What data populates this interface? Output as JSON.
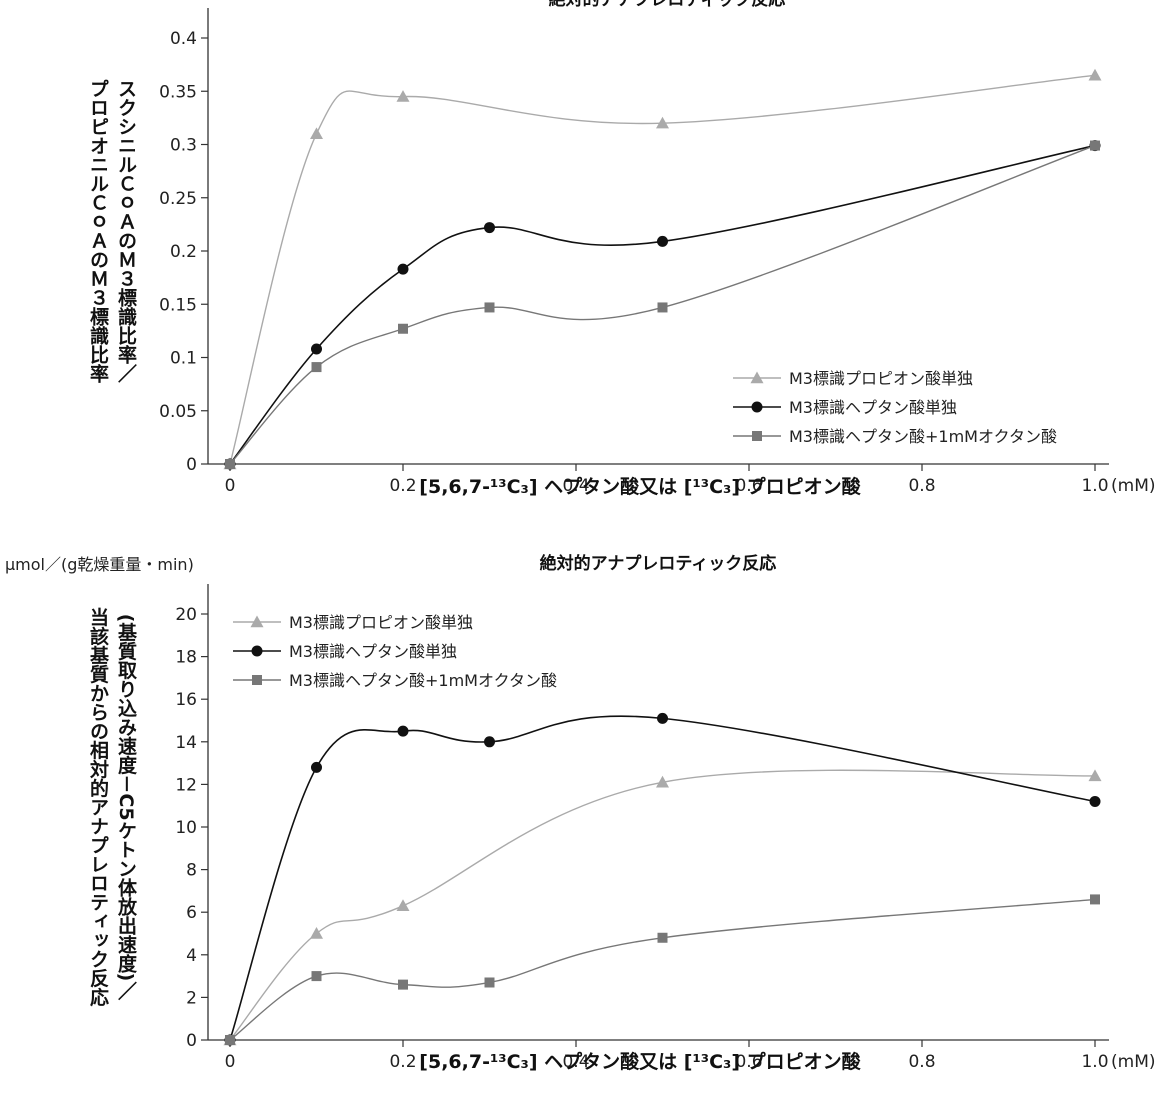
{
  "chart_data": [
    {
      "type": "line",
      "title": "絶対的アナプレロティック反応",
      "ylabel_lines": [
        "スクシニルＣｏＡのＭ３標識比率／",
        "プロピオニルＣｏＡのＭ３標識比率"
      ],
      "xlabel": "[5,6,7-¹³C₃] ヘプタン酸又は [¹³C₃] プロピオン酸",
      "x_unit": "(mM)",
      "xlim": [
        0,
        1.0
      ],
      "ylim": [
        0,
        0.4
      ],
      "xticks": [
        0,
        0.2,
        0.4,
        0.6,
        0.8,
        1.0
      ],
      "xtick_labels": [
        "0",
        "0.2",
        "0.4",
        "0.6",
        "0.8",
        "1.0"
      ],
      "yticks": [
        0,
        0.05,
        0.1,
        0.15,
        0.2,
        0.25,
        0.3,
        0.35,
        0.4
      ],
      "ytick_labels": [
        "0",
        "0.05",
        "0.1",
        "0.15",
        "0.2",
        "0.25",
        "0.3",
        "0.35",
        "0.4"
      ],
      "legend_position": "bottom-right",
      "series": [
        {
          "name": "M3標識プロピオン酸単独",
          "color": "#aaaaaa",
          "marker": "triangle",
          "x": [
            0,
            0.1,
            0.2,
            0.5,
            1.0
          ],
          "values": [
            0,
            0.31,
            0.345,
            0.32,
            0.365
          ]
        },
        {
          "name": "M3標識ヘプタン酸単独",
          "color": "#111111",
          "marker": "circle",
          "x": [
            0,
            0.1,
            0.2,
            0.3,
            0.5,
            1.0
          ],
          "values": [
            0,
            0.108,
            0.183,
            0.222,
            0.209,
            0.299
          ]
        },
        {
          "name": "M3標識ヘプタン酸+1mMオクタン酸",
          "color": "#777777",
          "marker": "square",
          "x": [
            0,
            0.1,
            0.2,
            0.3,
            0.5,
            1.0
          ],
          "values": [
            0,
            0.091,
            0.127,
            0.147,
            0.147,
            0.299
          ]
        }
      ]
    },
    {
      "type": "line",
      "title": "絶対的アナプレロティック反応",
      "unit_label": "μmol／(g乾燥重量・min)",
      "ylabel_lines": [
        "(基質取り込み速度－C5ケトン体放出速度)／",
        "当該基質からの相対的アナプレロティック反応"
      ],
      "xlabel": "[5,6,7-¹³C₃] ヘプタン酸又は [¹³C₃] プロピオン酸",
      "x_unit": "(mM)",
      "xlim": [
        0,
        1.0
      ],
      "ylim": [
        0,
        20
      ],
      "xticks": [
        0,
        0.2,
        0.4,
        0.6,
        0.8,
        1.0
      ],
      "xtick_labels": [
        "0",
        "0.2",
        "0.4",
        "0.6",
        "0.8",
        "1.0"
      ],
      "yticks": [
        0,
        2,
        4,
        6,
        8,
        10,
        12,
        14,
        16,
        18,
        20
      ],
      "ytick_labels": [
        "0",
        "2",
        "4",
        "6",
        "8",
        "10",
        "12",
        "14",
        "16",
        "18",
        "20"
      ],
      "legend_position": "top-left",
      "series": [
        {
          "name": "M3標識プロピオン酸単独",
          "color": "#aaaaaa",
          "marker": "triangle",
          "x": [
            0,
            0.1,
            0.2,
            0.5,
            1.0
          ],
          "values": [
            0,
            5.0,
            6.3,
            12.1,
            12.4
          ]
        },
        {
          "name": "M3標識ヘプタン酸単独",
          "color": "#111111",
          "marker": "circle",
          "x": [
            0,
            0.1,
            0.2,
            0.3,
            0.5,
            1.0
          ],
          "values": [
            0,
            12.8,
            14.5,
            14.0,
            15.1,
            11.2
          ]
        },
        {
          "name": "M3標識ヘプタン酸+1mMオクタン酸",
          "color": "#777777",
          "marker": "square",
          "x": [
            0,
            0.1,
            0.2,
            0.3,
            0.5,
            1.0
          ],
          "values": [
            0,
            3.0,
            2.6,
            2.7,
            4.8,
            6.6
          ]
        }
      ]
    }
  ]
}
